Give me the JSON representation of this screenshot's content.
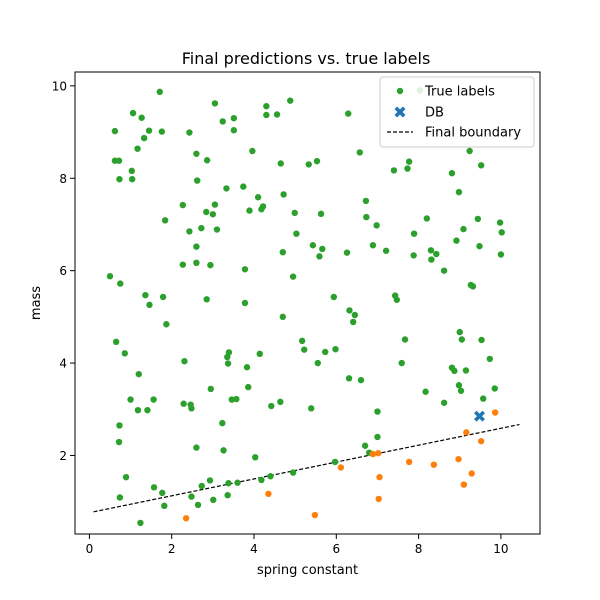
{
  "chart_data": {
    "type": "scatter",
    "title": "Final predictions vs. true labels",
    "xlabel": "spring constant",
    "ylabel": "mass",
    "xlim": [
      -0.35,
      10.95
    ],
    "ylim": [
      0.3,
      10.3
    ],
    "xticks": [
      0,
      2,
      4,
      6,
      8,
      10
    ],
    "yticks": [
      2,
      4,
      6,
      8,
      10
    ],
    "grid": false,
    "legend_position": "top-right",
    "colors": {
      "green": "#2ca02c",
      "orange": "#ff7f0e",
      "db": "#1f77b4",
      "boundary": "#000000"
    },
    "legend": [
      {
        "label": "True labels",
        "marker": "dot",
        "color": "#2ca02c"
      },
      {
        "label": "DB",
        "marker": "x",
        "color": "#1f77b4"
      },
      {
        "label": "Final boundary",
        "marker": "dashed-line",
        "color": "#000000"
      }
    ],
    "series": [
      {
        "name": "True labels",
        "color": "#2ca02c",
        "points": [
          [
            0.62,
            9.02
          ],
          [
            0.62,
            8.38
          ],
          [
            0.72,
            8.38
          ],
          [
            0.73,
            7.98
          ],
          [
            1.04,
            7.98
          ],
          [
            1.03,
            8.16
          ],
          [
            1.06,
            9.41
          ],
          [
            1.17,
            8.64
          ],
          [
            1.27,
            9.31
          ],
          [
            1.33,
            8.87
          ],
          [
            1.45,
            9.03
          ],
          [
            1.71,
            9.87
          ],
          [
            1.76,
            9.01
          ],
          [
            1.84,
            7.09
          ],
          [
            2.27,
            7.42
          ],
          [
            2.27,
            6.13
          ],
          [
            2.43,
            8.99
          ],
          [
            2.43,
            6.85
          ],
          [
            2.6,
            8.53
          ],
          [
            2.62,
            7.95
          ],
          [
            2.6,
            6.52
          ],
          [
            2.6,
            6.17
          ],
          [
            2.72,
            6.92
          ],
          [
            2.84,
            7.27
          ],
          [
            2.86,
            8.39
          ],
          [
            2.94,
            6.12
          ],
          [
            3.0,
            7.22
          ],
          [
            3.05,
            9.62
          ],
          [
            3.05,
            7.43
          ],
          [
            3.1,
            6.89
          ],
          [
            3.24,
            9.23
          ],
          [
            3.51,
            9.3
          ],
          [
            3.51,
            9.04
          ],
          [
            3.33,
            7.78
          ],
          [
            3.74,
            7.82
          ],
          [
            3.89,
            7.3
          ],
          [
            3.96,
            8.59
          ],
          [
            4.1,
            7.59
          ],
          [
            4.18,
            7.33
          ],
          [
            4.22,
            7.39
          ],
          [
            4.3,
            9.56
          ],
          [
            4.3,
            9.37
          ],
          [
            4.56,
            9.38
          ],
          [
            4.65,
            8.32
          ],
          [
            4.72,
            7.65
          ],
          [
            4.88,
            9.68
          ],
          [
            4.7,
            6.4
          ],
          [
            4.99,
            7.25
          ],
          [
            5.03,
            6.8
          ],
          [
            5.33,
            8.3
          ],
          [
            5.53,
            8.37
          ],
          [
            5.63,
            7.23
          ],
          [
            5.43,
            6.55
          ],
          [
            5.59,
            6.31
          ],
          [
            5.66,
            6.47
          ],
          [
            6.29,
            9.4
          ],
          [
            6.57,
            8.56
          ],
          [
            6.26,
            6.39
          ],
          [
            6.72,
            7.51
          ],
          [
            6.73,
            7.16
          ],
          [
            6.89,
            6.55
          ],
          [
            6.98,
            6.98
          ],
          [
            7.21,
            6.43
          ],
          [
            7.4,
            8.17
          ],
          [
            7.73,
            8.21
          ],
          [
            7.77,
            8.36
          ],
          [
            7.89,
            6.8
          ],
          [
            7.88,
            6.33
          ],
          [
            8.03,
            9.9
          ],
          [
            8.2,
            7.13
          ],
          [
            8.3,
            6.44
          ],
          [
            8.31,
            6.24
          ],
          [
            8.43,
            6.36
          ],
          [
            8.81,
            8.11
          ],
          [
            8.98,
            7.7
          ],
          [
            9.09,
            6.9
          ],
          [
            9.24,
            8.59
          ],
          [
            9.44,
            7.12
          ],
          [
            9.52,
            8.28
          ],
          [
            9.48,
            6.53
          ],
          [
            9.98,
            7.04
          ],
          [
            10.0,
            6.35
          ],
          [
            10.02,
            6.83
          ],
          [
            8.92,
            6.65
          ],
          [
            8.62,
            6.0
          ],
          [
            9.27,
            5.69
          ],
          [
            9.32,
            5.66
          ],
          [
            0.5,
            5.88
          ],
          [
            0.65,
            4.46
          ],
          [
            0.75,
            5.72
          ],
          [
            0.86,
            4.21
          ],
          [
            1.36,
            5.47
          ],
          [
            1.46,
            5.26
          ],
          [
            1.79,
            5.43
          ],
          [
            1.87,
            4.84
          ],
          [
            2.31,
            4.04
          ],
          [
            2.85,
            5.38
          ],
          [
            3.35,
            4.13
          ],
          [
            3.37,
            3.99
          ],
          [
            3.39,
            4.23
          ],
          [
            3.78,
            6.03
          ],
          [
            3.78,
            5.3
          ],
          [
            3.83,
            3.91
          ],
          [
            4.14,
            4.2
          ],
          [
            4.7,
            5.0
          ],
          [
            4.95,
            5.87
          ],
          [
            5.17,
            4.48
          ],
          [
            5.22,
            4.29
          ],
          [
            5.55,
            4.0
          ],
          [
            5.73,
            4.24
          ],
          [
            5.94,
            5.43
          ],
          [
            5.98,
            4.3
          ],
          [
            6.32,
            5.14
          ],
          [
            6.41,
            4.89
          ],
          [
            6.45,
            5.04
          ],
          [
            7.43,
            5.46
          ],
          [
            7.47,
            5.37
          ],
          [
            7.59,
            4.0
          ],
          [
            7.67,
            4.51
          ],
          [
            1.0,
            3.21
          ],
          [
            1.2,
            3.76
          ],
          [
            1.18,
            2.98
          ],
          [
            1.41,
            2.98
          ],
          [
            1.56,
            3.21
          ],
          [
            2.29,
            3.12
          ],
          [
            2.46,
            3.1
          ],
          [
            2.48,
            3.02
          ],
          [
            2.95,
            3.44
          ],
          [
            3.23,
            2.7
          ],
          [
            3.46,
            3.21
          ],
          [
            3.57,
            3.22
          ],
          [
            3.86,
            3.48
          ],
          [
            4.42,
            3.07
          ],
          [
            4.64,
            3.16
          ],
          [
            5.39,
            3.02
          ],
          [
            6.31,
            3.67
          ],
          [
            6.6,
            3.63
          ],
          [
            7.0,
            2.95
          ],
          [
            8.17,
            3.38
          ],
          [
            8.62,
            3.14
          ],
          [
            8.87,
            3.83
          ],
          [
            8.98,
            3.52
          ],
          [
            9.03,
            3.4
          ],
          [
            9.15,
            3.84
          ],
          [
            9.57,
            3.23
          ],
          [
            9.73,
            4.09
          ],
          [
            9.85,
            3.45
          ],
          [
            9.53,
            4.5
          ],
          [
            9.0,
            4.67
          ],
          [
            9.05,
            4.51
          ],
          [
            8.81,
            3.9
          ],
          [
            0.73,
            2.65
          ],
          [
            0.72,
            2.29
          ],
          [
            2.6,
            2.17
          ],
          [
            3.26,
            2.11
          ],
          [
            4.03,
            1.96
          ],
          [
            6.7,
            2.21
          ],
          [
            7.0,
            2.4
          ],
          [
            6.8,
            2.06
          ],
          [
            0.74,
            1.09
          ],
          [
            0.89,
            1.53
          ],
          [
            1.24,
            0.54
          ],
          [
            1.57,
            1.31
          ],
          [
            1.77,
            1.19
          ],
          [
            1.82,
            0.91
          ],
          [
            2.48,
            1.11
          ],
          [
            2.64,
            0.93
          ],
          [
            2.73,
            1.34
          ],
          [
            2.93,
            1.46
          ],
          [
            3.01,
            1.04
          ],
          [
            3.36,
            1.14
          ],
          [
            3.38,
            1.4
          ],
          [
            3.6,
            1.41
          ],
          [
            4.18,
            1.47
          ],
          [
            4.4,
            1.55
          ],
          [
            4.95,
            1.63
          ],
          [
            5.97,
            1.86
          ]
        ]
      },
      {
        "name": "",
        "color": "#ff7f0e",
        "points": [
          [
            2.35,
            0.64
          ],
          [
            4.35,
            1.17
          ],
          [
            5.48,
            0.71
          ],
          [
            6.11,
            1.74
          ],
          [
            6.89,
            2.03
          ],
          [
            7.05,
            1.53
          ],
          [
            7.03,
            1.06
          ],
          [
            7.77,
            1.86
          ],
          [
            8.37,
            1.8
          ],
          [
            8.97,
            1.92
          ],
          [
            9.1,
            1.37
          ],
          [
            9.16,
            2.5
          ],
          [
            9.29,
            1.61
          ],
          [
            9.52,
            2.31
          ],
          [
            9.86,
            2.93
          ],
          [
            7.02,
            2.05
          ]
        ]
      }
    ],
    "db_point": [
      9.48,
      2.85
    ],
    "boundary": {
      "x": [
        0.1,
        10.45
      ],
      "y": [
        0.78,
        2.67
      ]
    }
  }
}
